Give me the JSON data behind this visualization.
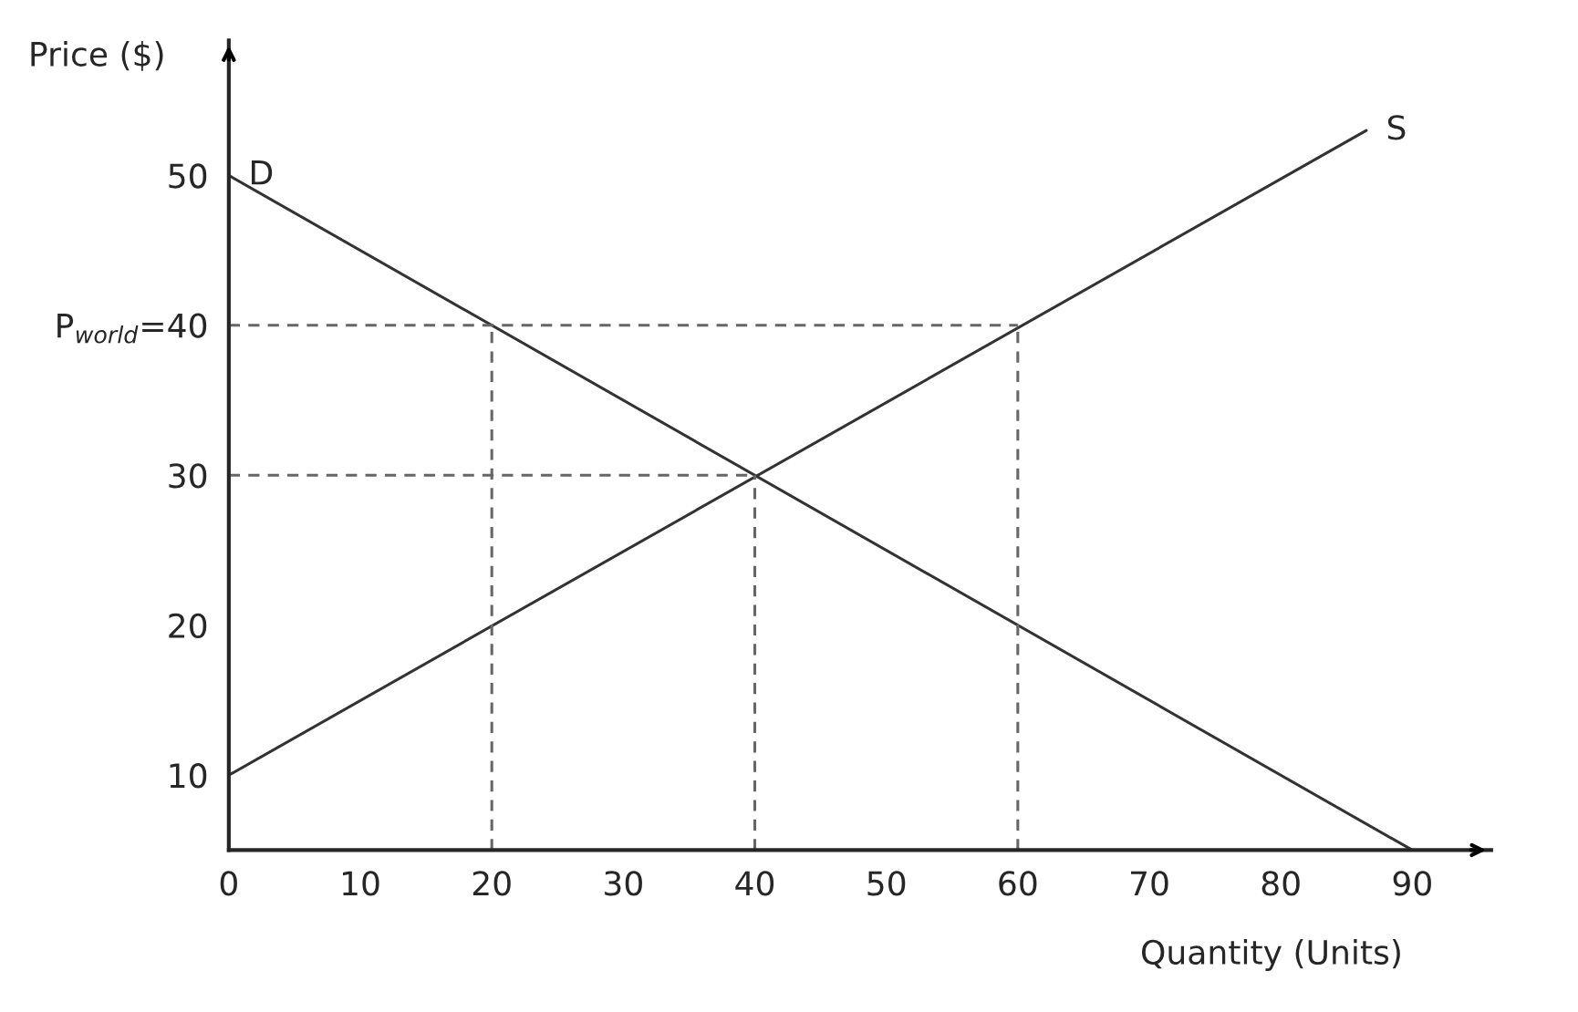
{
  "chart_data": {
    "type": "line",
    "xlabel": "Quantity (Units)",
    "ylabel": "Price ($)",
    "xlim": [
      0,
      96
    ],
    "ylim": [
      5,
      59
    ],
    "xticks": [
      0,
      10,
      20,
      30,
      40,
      50,
      60,
      70,
      80,
      90
    ],
    "yticks": [
      10,
      20,
      30,
      {
        "value": 40,
        "label": "P$_{world}$=40"
      },
      50
    ],
    "grid": false,
    "legend": false,
    "marker": "none",
    "series": [
      {
        "name": "D",
        "color": "#333333",
        "x": [
          0,
          90
        ],
        "values": [
          50,
          5
        ]
      },
      {
        "name": "S",
        "color": "#333333",
        "x": [
          0,
          86.5
        ],
        "values": [
          10,
          53
        ]
      },
      {
        "color": "#666666",
        "line_style": "dashed",
        "x": [
          0,
          60
        ],
        "values": [
          40,
          40
        ]
      },
      {
        "color": "#666666",
        "line_style": "dashed",
        "x": [
          0,
          40
        ],
        "values": [
          30,
          30
        ]
      },
      {
        "color": "#666666",
        "line_style": "dashed",
        "x": [
          20,
          20
        ],
        "values": [
          5,
          40
        ]
      },
      {
        "color": "#666666",
        "line_style": "dashed",
        "x": [
          40,
          40
        ],
        "values": [
          5,
          30
        ]
      },
      {
        "color": "#666666",
        "line_style": "dashed",
        "x": [
          60,
          60
        ],
        "values": [
          5,
          40
        ]
      }
    ]
  }
}
